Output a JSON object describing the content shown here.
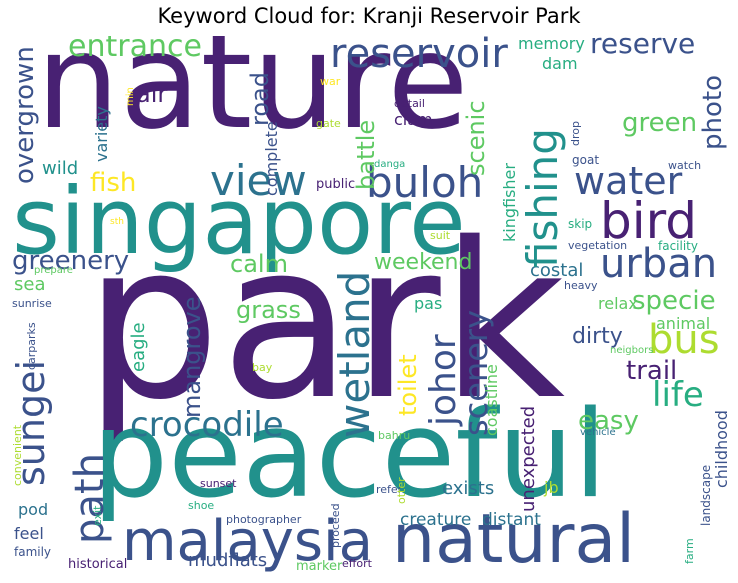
{
  "title": "Keyword Cloud for: Kranji Reservoir Park",
  "colors": {
    "dark_purple": "#482173",
    "indigo": "#3b528b",
    "slate_blue": "#2c728e",
    "teal": "#21918c",
    "green_teal": "#27ad81",
    "green": "#5ec962",
    "light_green": "#addc30",
    "yellow": "#fde725"
  },
  "words": {
    "nature": "nature",
    "park": "park",
    "singapore": "singapore",
    "peaceful": "peaceful",
    "natural": "natural",
    "malaysia": "malaysia",
    "reservoir": "reservoir",
    "bird": "bird",
    "buloh": "buloh",
    "view": "view",
    "water": "water",
    "urban": "urban",
    "fishing": "fishing",
    "wetland": "wetland",
    "crocodile": "crocodile",
    "sungei": "sungei",
    "johor": "johor",
    "scenery": "scenery",
    "bus": "bus",
    "entrance": "entrance",
    "reserve": "reserve",
    "overgrown": "overgrown",
    "fish": "fish",
    "greenery": "greenery",
    "path": "path",
    "mangrove": "mangrove",
    "life": "life",
    "trail": "trail",
    "specie": "specie",
    "grass": "grass",
    "toilet": "toilet",
    "easy": "easy",
    "weekend": "weekend",
    "calm": "calm",
    "photo": "photo",
    "green": "green",
    "scenic": "scenic",
    "battle": "battle",
    "road": "road",
    "air": "air",
    "memory": "memory",
    "dam": "dam",
    "dirty": "dirty",
    "sea": "sea",
    "costal": "costal",
    "relax": "relax",
    "exists": "exists",
    "creature": "creature",
    "distant": "distant",
    "unexpected": "unexpected",
    "childhood": "childhood",
    "coastline": "coastline",
    "kingfisher": "kingfisher",
    "complete": "complete",
    "clam": "clam",
    "variety": "variety",
    "wild": "wild",
    "eagle": "eagle",
    "pas": "pas",
    "animal": "animal",
    "jb": "jb",
    "feel": "feel",
    "pod": "pod",
    "family": "family",
    "historical": "historical",
    "mudflats": "mudflats",
    "marker": "marker",
    "effort": "effort",
    "photographer": "photographer",
    "sunset": "sunset",
    "proceed": "proceed",
    "refer": "refer",
    "shoe": "shoe",
    "exit": "exit",
    "bahru": "bahru",
    "otter": "otter",
    "farm": "farm",
    "landscape": "landscape",
    "vehicle": "vehicle",
    "neigbors": "neigbors",
    "heavy": "heavy",
    "facility": "facility",
    "vegetation": "vegetation",
    "skip": "skip",
    "suit": "suit",
    "goat": "goat",
    "watch": "watch",
    "public": "public",
    "danga": "danga",
    "drop": "drop",
    "detail": "detail",
    "gate": "gate",
    "war": "war",
    "min": "min",
    "sth": "sth",
    "prepare": "prepare",
    "sunrise": "sunrise",
    "carparks": "carparks",
    "bay": "bay",
    "convenient": "convenient"
  }
}
